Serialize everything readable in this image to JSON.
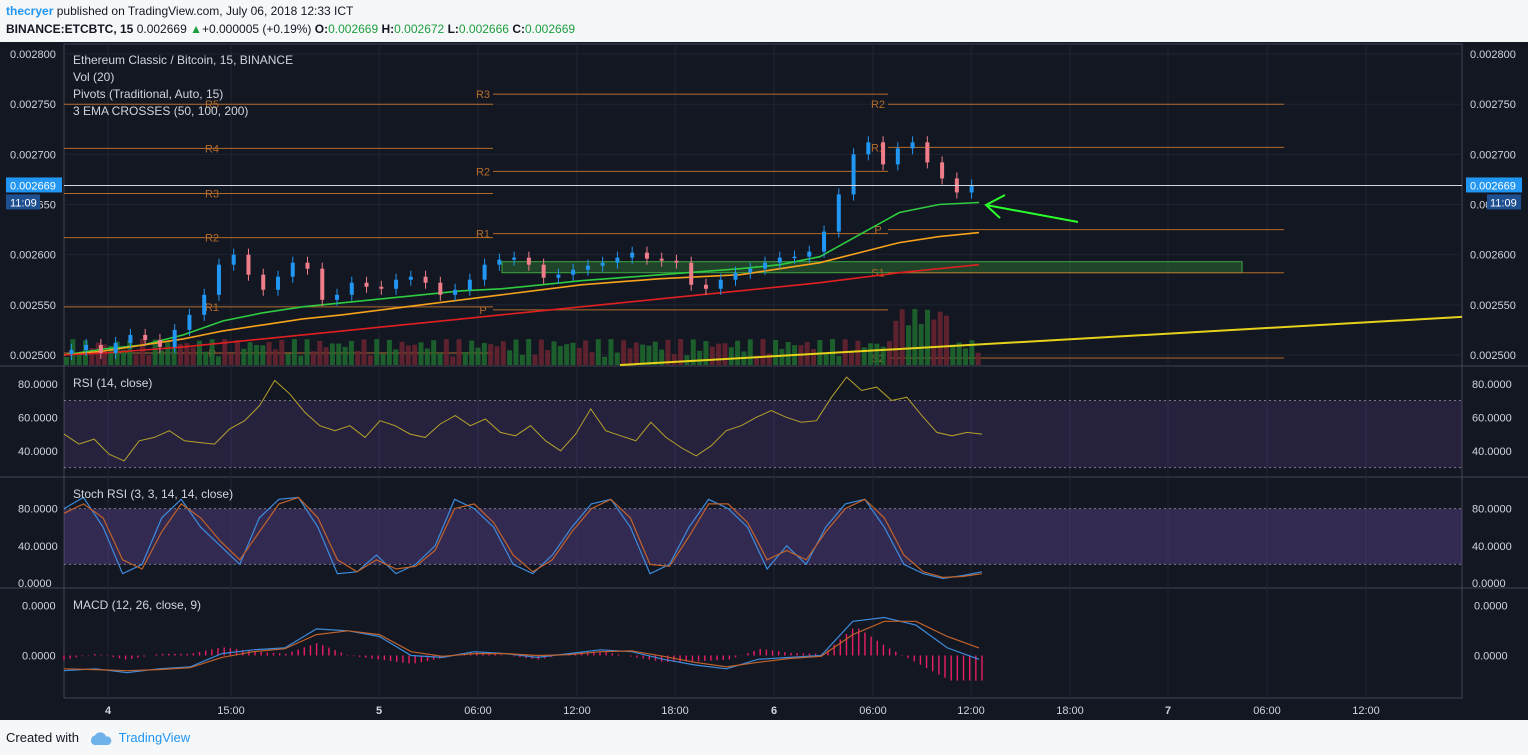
{
  "header": {
    "author": "thecryer",
    "published_text": "published on TradingView.com, July 06, 2018 12:33 ICT",
    "symbol": "BINANCE:ETCBTC, 15",
    "price": "0.002669",
    "change_arrow": "▲",
    "change": "+0.000005 (+0.19%)",
    "o_label": "O:",
    "o": "0.002669",
    "h_label": "H:",
    "h": "0.002672",
    "l_label": "L:",
    "l": "0.002666",
    "c_label": "C:",
    "c": "0.002669"
  },
  "footer": {
    "created_with": "Created with",
    "brand": "TradingView"
  },
  "colors": {
    "background": "#131722",
    "grid": "#1f2433",
    "up_candle": "#2196f3",
    "down_candle": "#ef7d8a",
    "ema50": "#2ecc40",
    "ema100": "#f7a21b",
    "ema200": "#e02020",
    "pivot": "#b36b2a",
    "trendline": "#e6d21a",
    "zone": "#2e7d32",
    "rsi": "#b5a12a",
    "stoch_k": "#3d8bdb",
    "stoch_d": "#c0622b",
    "macd": "#3d8bdb",
    "signal": "#c0622b",
    "hist": "#e91e63",
    "arrow": "#2bff2b",
    "price_badge": "#2196f3"
  },
  "chart_data": [
    {
      "type": "line",
      "title": "Ethereum Classic / Bitcoin, 15, BINANCE",
      "legend": [
        "Vol (20)",
        "Pivots (Traditional, Auto, 15)",
        "3 EMA CROSSES (50, 100, 200)"
      ],
      "ylim": [
        0.00249,
        0.00281
      ],
      "yticks": [
        "0.002800",
        "0.002750",
        "0.002700",
        "0.002650",
        "0.002600",
        "0.002550",
        "0.002500"
      ],
      "last_price": "0.002669",
      "countdown": "11:09",
      "price": [
        0.002505,
        0.00251,
        0.002502,
        0.002512,
        0.00252,
        0.002515,
        0.002508,
        0.002525,
        0.00254,
        0.00256,
        0.00259,
        0.0026,
        0.00258,
        0.002565,
        0.002578,
        0.002592,
        0.002586,
        0.002555,
        0.00256,
        0.002572,
        0.002568,
        0.002566,
        0.002575,
        0.002578,
        0.002572,
        0.00256,
        0.002565,
        0.002575,
        0.00259,
        0.002595,
        0.002597,
        0.00259,
        0.002577,
        0.00258,
        0.002585,
        0.002589,
        0.002592,
        0.002597,
        0.002602,
        0.002596,
        0.002594,
        0.002592,
        0.00257,
        0.002566,
        0.002575,
        0.002582,
        0.002586,
        0.002592,
        0.002597,
        0.002598,
        0.002603,
        0.002623,
        0.00266,
        0.0027,
        0.002712,
        0.00269,
        0.002706,
        0.002712,
        0.002692,
        0.002676,
        0.002662,
        0.002669
      ],
      "ema_series": [
        {
          "name": "EMA 50",
          "values": [
            0.0025,
            0.002506,
            0.00251,
            0.00252,
            0.002534,
            0.002542,
            0.002548,
            0.002552,
            0.002556,
            0.00256,
            0.002564,
            0.002566,
            0.00257,
            0.002574,
            0.002577,
            0.00258,
            0.002583,
            0.002586,
            0.00259,
            0.002598,
            0.00262,
            0.002642,
            0.00265,
            0.002652
          ]
        },
        {
          "name": "EMA 100",
          "values": [
            0.0025,
            0.002504,
            0.00251,
            0.002516,
            0.002524,
            0.00253,
            0.002536,
            0.00254,
            0.002545,
            0.00255,
            0.002555,
            0.00256,
            0.002565,
            0.00257,
            0.002573,
            0.002576,
            0.002578,
            0.00258,
            0.002586,
            0.002592,
            0.002602,
            0.002612,
            0.002618,
            0.002622
          ]
        },
        {
          "name": "EMA 200",
          "values": [
            0.0025,
            0.002502,
            0.002505,
            0.002508,
            0.002512,
            0.002516,
            0.00252,
            0.002524,
            0.002528,
            0.002532,
            0.002536,
            0.00254,
            0.002544,
            0.002548,
            0.002552,
            0.002556,
            0.00256,
            0.002564,
            0.002568,
            0.002572,
            0.002577,
            0.002582,
            0.002586,
            0.00259
          ]
        }
      ],
      "pivot_labels": [
        "R5",
        "R4",
        "R3",
        "R2",
        "R1",
        "P",
        "R3",
        "R2",
        "R1",
        "P",
        "R2",
        "R1",
        "P",
        "S1",
        "S2"
      ],
      "pivot_levels": [
        0.00275,
        0.002706,
        0.002661,
        0.002617,
        0.002548,
        0.002502,
        0.00276,
        0.002683,
        0.002621,
        0.002545,
        0.00275,
        0.002707,
        0.002625,
        0.002582,
        0.002497
      ]
    },
    {
      "type": "line",
      "title": "RSI (14, close)",
      "yticks": [
        "80.0000",
        "60.0000",
        "40.0000"
      ],
      "ylim": [
        25,
        90
      ],
      "values": [
        50,
        44,
        47,
        38,
        34,
        46,
        48,
        52,
        46,
        45,
        44,
        53,
        58,
        67,
        82,
        74,
        63,
        55,
        52,
        55,
        48,
        58,
        55,
        50,
        48,
        56,
        61,
        55,
        59,
        51,
        49,
        55,
        46,
        40,
        50,
        65,
        52,
        49,
        46,
        57,
        48,
        42,
        37,
        43,
        52,
        55,
        60,
        64,
        60,
        57,
        58,
        72,
        84,
        76,
        78,
        70,
        72,
        61,
        51,
        49,
        51,
        50
      ]
    },
    {
      "type": "line",
      "title": "Stoch RSI (3, 3, 14, 14, close)",
      "yticks": [
        "80.0000",
        "40.0000",
        "0.0000"
      ],
      "ylim": [
        0,
        100
      ],
      "series": [
        {
          "name": "K",
          "values": [
            80,
            92,
            60,
            10,
            20,
            70,
            90,
            60,
            40,
            20,
            70,
            90,
            92,
            60,
            10,
            12,
            30,
            10,
            20,
            40,
            90,
            80,
            60,
            20,
            10,
            30,
            60,
            85,
            90,
            60,
            10,
            20,
            60,
            90,
            80,
            60,
            15,
            40,
            20,
            60,
            85,
            90,
            60,
            20,
            10,
            5,
            8,
            12
          ]
        },
        {
          "name": "D",
          "values": [
            75,
            85,
            70,
            25,
            15,
            55,
            85,
            70,
            45,
            25,
            55,
            85,
            92,
            70,
            25,
            12,
            25,
            15,
            18,
            35,
            80,
            85,
            65,
            30,
            12,
            25,
            55,
            80,
            90,
            70,
            20,
            18,
            50,
            85,
            85,
            65,
            25,
            35,
            25,
            55,
            80,
            90,
            70,
            30,
            12,
            6,
            7,
            10
          ]
        }
      ]
    },
    {
      "type": "line",
      "title": "MACD (12, 26, close, 9)",
      "yticks": [
        "0.0000",
        "0.0000"
      ],
      "ylim": [
        -1,
        1
      ],
      "series": [
        {
          "name": "MACD",
          "values": [
            -0.4,
            -0.35,
            -0.45,
            -0.35,
            -0.3,
            0.05,
            0.15,
            0.2,
            0.7,
            0.65,
            0.5,
            0.0,
            -0.05,
            0.1,
            0.05,
            -0.05,
            0.05,
            0.15,
            0.1,
            -0.1,
            -0.25,
            -0.35,
            -0.1,
            -0.05,
            0.0,
            0.9,
            1.0,
            0.8,
            0.2,
            -0.1
          ]
        },
        {
          "name": "Signal",
          "values": [
            -0.35,
            -0.37,
            -0.4,
            -0.37,
            -0.32,
            -0.05,
            0.1,
            0.18,
            0.55,
            0.65,
            0.55,
            0.1,
            -0.02,
            0.05,
            0.05,
            0.0,
            0.02,
            0.1,
            0.12,
            -0.02,
            -0.18,
            -0.3,
            -0.18,
            -0.08,
            -0.02,
            0.55,
            0.9,
            0.9,
            0.5,
            0.2
          ]
        }
      ]
    }
  ],
  "time_axis": [
    "4",
    "15:00",
    "5",
    "06:00",
    "12:00",
    "18:00",
    "6",
    "06:00",
    "12:00",
    "18:00",
    "7",
    "06:00",
    "12:00"
  ]
}
